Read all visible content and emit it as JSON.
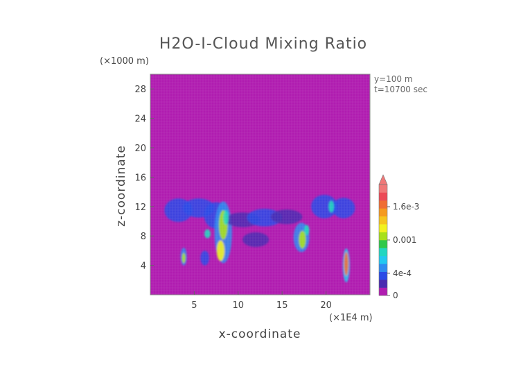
{
  "chart_data": {
    "type": "heatmap",
    "title": "H2O-I-Cloud Mixing Ratio",
    "xlabel": "x-coordinate",
    "ylabel": "z-coordinate",
    "x_unit": "(×1E4 m)",
    "y_unit": "(×1000 m)",
    "xlim": [
      0,
      25
    ],
    "ylim": [
      0,
      30
    ],
    "x_ticks": [
      5,
      10,
      15,
      20
    ],
    "y_ticks": [
      4,
      8,
      12,
      16,
      20,
      24,
      28
    ],
    "annotations": [
      "y=100 m",
      "t=10700 sec"
    ],
    "background_color": "#b01cb0",
    "colorbar": {
      "labels": [
        {
          "value": 0,
          "text": "0"
        },
        {
          "value": 0.0004,
          "text": "4e-4"
        },
        {
          "value": 0.001,
          "text": "0.001"
        },
        {
          "value": 0.0016,
          "text": "1.6e-3"
        }
      ],
      "min": 0,
      "max": 0.002,
      "colors": [
        "#b01cb0",
        "#4a2bb0",
        "#2a4be6",
        "#2f8cf0",
        "#23c8f0",
        "#22d6c0",
        "#2fc84a",
        "#a8e01a",
        "#f2f21e",
        "#f6c51e",
        "#f59a1f",
        "#f06e33",
        "#ec4a57",
        "#f07878"
      ],
      "extend": "max"
    },
    "blobs": [
      {
        "x": 3.2,
        "z": 11.5,
        "rx": 1.6,
        "rz": 1.6,
        "level": 2
      },
      {
        "x": 5.5,
        "z": 11.8,
        "rx": 1.8,
        "rz": 1.3,
        "level": 2
      },
      {
        "x": 7.5,
        "z": 10.8,
        "rx": 1.4,
        "rz": 1.8,
        "level": 2
      },
      {
        "x": 8.3,
        "z": 8.5,
        "rx": 1.0,
        "rz": 4.2,
        "level": 3
      },
      {
        "x": 10.5,
        "z": 10.2,
        "rx": 2.0,
        "rz": 1.0,
        "level": 1
      },
      {
        "x": 13.0,
        "z": 10.5,
        "rx": 2.0,
        "rz": 1.2,
        "level": 2
      },
      {
        "x": 15.5,
        "z": 10.6,
        "rx": 1.8,
        "rz": 1.0,
        "level": 1
      },
      {
        "x": 17.2,
        "z": 7.8,
        "rx": 0.9,
        "rz": 2.0,
        "level": 3
      },
      {
        "x": 19.8,
        "z": 12.0,
        "rx": 1.5,
        "rz": 1.6,
        "level": 2
      },
      {
        "x": 22.0,
        "z": 11.8,
        "rx": 1.3,
        "rz": 1.4,
        "level": 2
      },
      {
        "x": 3.8,
        "z": 5.2,
        "rx": 0.35,
        "rz": 1.2,
        "level": 3
      },
      {
        "x": 6.2,
        "z": 5.0,
        "rx": 0.5,
        "rz": 1.0,
        "level": 2
      },
      {
        "x": 12.0,
        "z": 7.5,
        "rx": 1.5,
        "rz": 1.0,
        "level": 1
      },
      {
        "x": 22.3,
        "z": 4.0,
        "rx": 0.4,
        "rz": 2.3,
        "level": 4
      }
    ],
    "cores": [
      {
        "x": 8.3,
        "z": 9.5,
        "rx": 0.5,
        "rz": 2.0,
        "level": 7
      },
      {
        "x": 8.0,
        "z": 6.0,
        "rx": 0.45,
        "rz": 1.4,
        "level": 8
      },
      {
        "x": 8.6,
        "z": 10.5,
        "rx": 0.3,
        "rz": 1.0,
        "level": 5
      },
      {
        "x": 17.3,
        "z": 7.5,
        "rx": 0.4,
        "rz": 1.2,
        "level": 7
      },
      {
        "x": 17.8,
        "z": 8.8,
        "rx": 0.3,
        "rz": 0.7,
        "level": 5
      },
      {
        "x": 20.6,
        "z": 12.0,
        "rx": 0.3,
        "rz": 0.8,
        "level": 5
      },
      {
        "x": 22.3,
        "z": 4.2,
        "rx": 0.25,
        "rz": 1.6,
        "level": 11
      },
      {
        "x": 3.8,
        "z": 5.0,
        "rx": 0.2,
        "rz": 0.7,
        "level": 7
      },
      {
        "x": 6.5,
        "z": 8.3,
        "rx": 0.35,
        "rz": 0.6,
        "level": 5
      }
    ]
  }
}
